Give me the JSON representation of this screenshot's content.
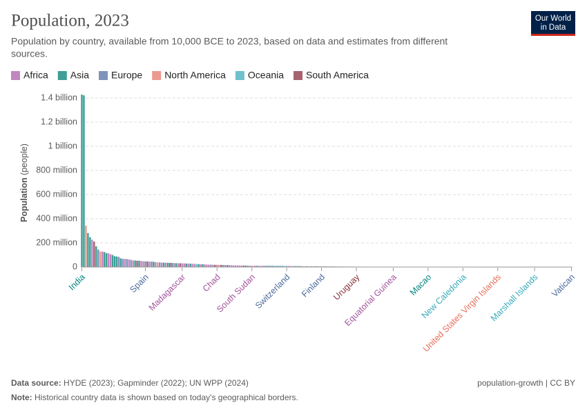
{
  "chart_data": {
    "type": "bar",
    "title": "Population, 2023",
    "subtitle": [
      "Population by country, available from 10,000 BCE to 2023, based on data and estimates from different",
      "sources."
    ],
    "logo": [
      "Our World",
      "in Data"
    ],
    "y_label": "Population",
    "y_label_unit": "(people)",
    "legend": [
      {
        "name": "Africa",
        "color": "#c187bf",
        "text_color": "#a2559c"
      },
      {
        "name": "Asia",
        "color": "#3f9e96",
        "text_color": "#00847e"
      },
      {
        "name": "Europe",
        "color": "#7f94bb",
        "text_color": "#4c6a9c"
      },
      {
        "name": "North America",
        "color": "#eb9a8d",
        "text_color": "#e56e5a"
      },
      {
        "name": "Oceania",
        "color": "#6fc0ca",
        "text_color": "#38aaba"
      },
      {
        "name": "South America",
        "color": "#a5626f",
        "text_color": "#883039"
      }
    ],
    "ylim": [
      0,
      1400000000
    ],
    "yticks": [
      0,
      {
        "value": 200000000,
        "label": "200 million"
      },
      {
        "value": 400000000,
        "label": "400 million"
      },
      {
        "value": 600000000,
        "label": "600 million"
      },
      {
        "value": 800000000,
        "label": "800 million"
      },
      {
        "value": 1000000000,
        "label": "1 billion"
      },
      {
        "value": 1200000000,
        "label": "1.2 billion"
      },
      {
        "value": 1400000000,
        "label": "1.4 billion"
      }
    ],
    "grid": true,
    "categories": [
      "India",
      null,
      null,
      null,
      null,
      null,
      null,
      null,
      null,
      null,
      null,
      null,
      null,
      null,
      null,
      null,
      null,
      null,
      null,
      null,
      null,
      null,
      null,
      null,
      null,
      null,
      null,
      null,
      null,
      null,
      null,
      "Spain",
      null,
      null,
      null,
      null,
      null,
      null,
      null,
      null,
      null,
      null,
      null,
      null,
      null,
      null,
      null,
      null,
      null,
      "Madagascar",
      null,
      null,
      null,
      null,
      null,
      null,
      null,
      null,
      null,
      null,
      null,
      null,
      null,
      null,
      null,
      null,
      "Chad",
      null,
      null,
      null,
      null,
      null,
      null,
      null,
      null,
      null,
      null,
      null,
      null,
      null,
      null,
      null,
      null,
      "South Sudan",
      null,
      null,
      null,
      null,
      null,
      null,
      null,
      null,
      null,
      null,
      null,
      null,
      null,
      null,
      null,
      null,
      "Switzerland",
      null,
      null,
      null,
      null,
      null,
      null,
      null,
      null,
      null,
      null,
      null,
      null,
      null,
      null,
      null,
      null,
      "Finland",
      null,
      null,
      null,
      null,
      null,
      null,
      null,
      null,
      null,
      null,
      null,
      null,
      null,
      null,
      null,
      null,
      "Uruguay",
      null,
      null,
      null,
      null,
      null,
      null,
      null,
      null,
      null,
      null,
      null,
      null,
      null,
      null,
      null,
      null,
      null,
      "Equatorial Guinea",
      null,
      null,
      null,
      null,
      null,
      null,
      null,
      null,
      null,
      null,
      null,
      null,
      null,
      null,
      null,
      null,
      "Macao",
      null,
      null,
      null,
      null,
      null,
      null,
      null,
      null,
      null,
      null,
      null,
      null,
      null,
      null,
      null,
      null,
      "New Caledonia",
      null,
      null,
      null,
      null,
      null,
      null,
      null,
      null,
      null,
      null,
      null,
      null,
      null,
      null,
      null,
      null,
      "United States Virgin Islands",
      null,
      null,
      null,
      null,
      null,
      null,
      null,
      null,
      null,
      null,
      null,
      null,
      null,
      null,
      null,
      null,
      null,
      "Marshall Islands",
      null,
      null,
      null,
      null,
      null,
      null,
      null,
      null,
      null,
      null,
      null,
      null,
      null,
      null,
      null,
      null,
      null,
      "Vatican"
    ],
    "values": [
      1428000000.0,
      1422000000.0,
      343000000.0,
      281000000.0,
      247000000.0,
      227000000.0,
      211000000.0,
      171000000.0,
      145000000.0,
      129000000.0,
      128000000.0,
      124000000.0,
      115000000.0,
      114000000.0,
      105000000.0,
      100000000.0,
      90000000.0,
      87000000.0,
      84000000.0,
      72000000.0,
      68000000.0,
      67000000.0,
      66000000.0,
      63000000.0,
      59000000.0,
      55000000.0,
      54000000.0,
      52000000.0,
      52000000.0,
      50000000.0,
      48000000.0,
      47500000.0,
      46000000.0,
      45000000.0,
      45000000.0,
      44000000.0,
      40000000.0,
      39000000.0,
      38000000.0,
      37000000.0,
      36000000.0,
      36000000.0,
      35000000.0,
      34000000.0,
      34000000.0,
      33000000.0,
      32000000.0,
      31000000.0,
      31000000.0,
      30500000.0,
      30000000.0,
      29000000.0,
      28000000.0,
      28000000.0,
      27000000.0,
      26000000.0,
      26000000.0,
      24000000.0,
      23000000.0,
      23000000.0,
      22000000.0,
      20000000.0,
      20000000.0,
      19500000.0,
      19000000.0,
      18500000.0,
      18300000.0,
      18000000.0,
      17800000.0,
      17500000.0,
      17000000.0,
      16500000.0,
      16000000.0,
      15000000.0,
      14000000.0,
      14000000.0,
      13500000.0,
      13000000.0,
      12500000.0,
      12000000.0,
      12000000.0,
      11500000.0,
      11200000.0,
      11100000.0,
      11000000.0,
      10900000.0,
      10700000.0,
      10500000.0,
      10400000.0,
      10300000.0,
      10200000.0,
      10000000.0,
      10000000.0,
      9800000.0,
      9500000.0,
      9400000.0,
      9200000.0,
      9100000.0,
      9000000.0,
      8900000.0,
      8800000.0,
      8600000.0,
      8400000.0,
      8200000.0,
      8000000.0,
      7700000.0,
      7500000.0,
      7300000.0,
      7100000.0,
      6900000.0,
      6800000.0,
      6600000.0,
      6500000.0,
      6300000.0,
      6100000.0,
      5900000.0,
      5700000.0,
      5550000.0,
      5500000.0,
      5400000.0,
      5300000.0,
      5200000.0,
      5100000.0,
      5000000.0,
      4900000.0,
      4800000.0,
      4600000.0,
      4500000.0,
      4300000.0,
      4100000.0,
      3900000.0,
      3700000.0,
      3600000.0,
      3500000.0,
      3400000.0,
      3300000.0,
      3200000.0,
      3000000.0,
      2900000.0,
      2800000.0,
      2700000.0,
      2600000.0,
      2500000.0,
      2400000.0,
      2300000.0,
      2200000.0,
      2100000.0,
      2000000.0,
      1950000.0,
      1900000.0,
      1850000.0,
      1800000.0,
      1700000.0,
      1600000.0,
      1500000.0,
      1400000.0,
      1350000.0,
      1300000.0,
      1250000.0,
      1200000.0,
      1150000.0,
      1100000.0,
      1000000.0,
      950000.0,
      900000.0,
      850000.0,
      800000.0,
      750000.0,
      720000.0,
      700000.0,
      680000.0,
      650000.0,
      620000.0,
      600000.0,
      550000.0,
      520000.0,
      500000.0,
      480000.0,
      450000.0,
      420000.0,
      400000.0,
      380000.0,
      360000.0,
      330000.0,
      310000.0,
      300000.0,
      290000.0,
      280000.0,
      270000.0,
      260000.0,
      240000.0,
      220000.0,
      200000.0,
      190000.0,
      180000.0,
      170000.0,
      160000.0,
      150000.0,
      140000.0,
      130000.0,
      120000.0,
      110000.0,
      105000.0,
      100000.0,
      98000,
      90000,
      85000,
      80000,
      75000,
      70000,
      66000,
      62000,
      58000,
      55000,
      50000,
      48000,
      46000,
      44000,
      43000,
      42000,
      41000,
      40000,
      39000,
      38000,
      36000,
      34000,
      32000,
      30000,
      28000,
      25000,
      20000,
      18000,
      15000,
      12000,
      11000,
      6000,
      4000,
      2000,
      1600,
      500
    ],
    "groups": [
      "Asia",
      "Asia",
      "North America",
      "Asia",
      "Asia",
      "Africa",
      "South America",
      "Asia",
      "Europe",
      "North America",
      "Africa",
      "Asia",
      "Asia",
      "Africa",
      "Africa",
      "Asia",
      "Asia",
      "Asia",
      "Europe",
      "Asia",
      "Europe",
      "Africa",
      "Europe",
      "Africa",
      "Europe",
      "Africa",
      "Asia",
      "South America",
      "Asia",
      "Africa",
      "Africa",
      "Europe",
      "South America",
      "Africa",
      "Europe",
      "Asia",
      "Africa",
      "North America",
      "Europe",
      "Africa",
      "Asia",
      "Africa",
      "Asia",
      "South America",
      "Asia",
      "Africa",
      "Asia",
      "Africa",
      "South America",
      "Africa",
      "Africa",
      "Asia",
      "Africa",
      "Asia",
      "Africa",
      "Africa",
      "Oceania",
      "Asia",
      "Africa",
      "Asia",
      "Africa",
      "Africa",
      "Africa",
      "Europe",
      "Africa",
      "South America",
      "Africa",
      "North America",
      "South America",
      "Europe",
      "Africa",
      "Asia",
      "Africa",
      "Africa",
      "Africa",
      "Africa",
      "Africa",
      "Africa",
      "Africa",
      "South America",
      "Asia",
      "Europe",
      "Africa",
      "Africa",
      "North America",
      "Europe",
      "Europe",
      "North America",
      "Africa",
      "Europe",
      "Europe",
      "Asia",
      "Europe",
      "Asia",
      "Europe",
      "Europe",
      "Asia",
      "Europe",
      "Asia",
      "Oceania",
      "Europe",
      "Africa",
      "Africa",
      "Africa",
      "Asia",
      "Europe",
      "Asia",
      "Asia",
      "North America",
      "Africa",
      "Europe",
      "North America",
      "Africa",
      "North America",
      "Asia",
      "Europe",
      "Africa",
      "Europe",
      "Europe",
      "Asia",
      "North America",
      "Africa",
      "Europe",
      "Asia",
      "Africa",
      "Oceania",
      "North America",
      "Africa",
      "Asia",
      "Africa",
      "Europe",
      "Asia",
      "Europe",
      "Europe",
      "South America",
      "Asia",
      "Europe",
      "Asia",
      "North America",
      "Africa",
      "Asia",
      "Africa",
      "Africa",
      "Africa",
      "Africa",
      "Europe",
      "Europe",
      "Africa",
      "Europe",
      "Africa",
      "Asia",
      "Europe",
      "Africa",
      "Africa",
      "Asia",
      "North America",
      "Africa",
      "Europe",
      "Asia",
      "Africa",
      "Africa",
      "Oceania",
      "Asia",
      "Africa",
      "South America",
      "Asia",
      "Africa",
      "Asia",
      "Europe",
      "Asia",
      "Europe",
      "Africa",
      "South America",
      "Asia",
      "Africa",
      "Europe",
      "Asia",
      "Africa",
      "South America",
      "Asia",
      "North America",
      "Europe",
      "Oceania",
      "North America",
      "Oceania",
      "Europe",
      "Oceania",
      "North America",
      "Oceania",
      "Africa",
      "North America",
      "Africa",
      "Oceania",
      "North America",
      "North America",
      "Oceania",
      "Asia",
      "North America",
      "Oceania",
      "Africa",
      "North America",
      "Oceania",
      "North America",
      "North America",
      "North America",
      "North America",
      "Europe",
      "Europe",
      "North America",
      "North America",
      "Africa",
      "North America",
      "Europe",
      "Oceania",
      "North America",
      "North America",
      "Europe",
      "Oceania",
      "Europe",
      "North America",
      "North America",
      "Oceania",
      "Europe",
      "Europe",
      "North America",
      "Europe",
      "Oceania",
      "North America",
      "Europe",
      "North America",
      "Africa",
      "Oceania",
      "North America",
      "Oceania",
      "Oceania",
      "South America",
      "North America",
      "Oceania",
      "Oceania",
      "Europe"
    ],
    "source_label": "Data source:",
    "source": "HYDE (2023); Gapminder (2022); UN WPP (2024)",
    "note_label": "Note:",
    "note": "Historical country data is shown based on today's geographical borders.",
    "footer_right": "population-growth | CC BY"
  }
}
